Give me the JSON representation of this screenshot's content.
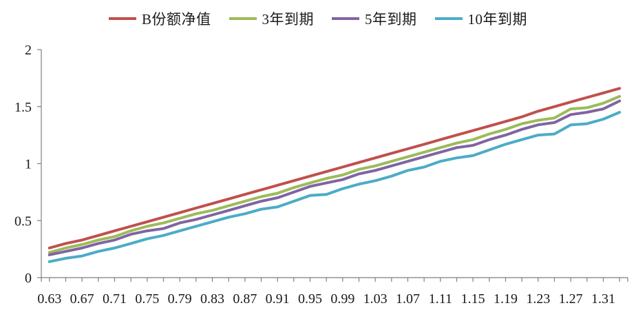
{
  "chart_data": {
    "type": "line",
    "title": "",
    "xlabel": "",
    "ylabel": "",
    "x_tick_labels": [
      "0.63",
      "0.67",
      "0.71",
      "0.75",
      "0.79",
      "0.83",
      "0.87",
      "0.91",
      "0.95",
      "0.99",
      "1.03",
      "1.07",
      "1.11",
      "1.15",
      "1.19",
      "1.23",
      "1.27",
      "1.31"
    ],
    "x": [
      0.63,
      0.65,
      0.67,
      0.69,
      0.71,
      0.73,
      0.75,
      0.77,
      0.79,
      0.81,
      0.83,
      0.85,
      0.87,
      0.89,
      0.91,
      0.93,
      0.95,
      0.97,
      0.99,
      1.01,
      1.03,
      1.05,
      1.07,
      1.09,
      1.11,
      1.13,
      1.15,
      1.17,
      1.19,
      1.21,
      1.23,
      1.25,
      1.27,
      1.29,
      1.31,
      1.33
    ],
    "xlim": [
      0.62,
      1.34
    ],
    "ylim": [
      0,
      2
    ],
    "y_ticks": [
      0,
      0.5,
      1,
      1.5,
      2
    ],
    "y_tick_labels": [
      "0",
      "0.5",
      "1",
      "1.5",
      "2"
    ],
    "grid": false,
    "legend_position": "top-center",
    "series": [
      {
        "name": "B份额净值",
        "color": "#c0504d",
        "values": [
          0.26,
          0.3,
          0.33,
          0.37,
          0.41,
          0.45,
          0.49,
          0.53,
          0.57,
          0.61,
          0.65,
          0.69,
          0.73,
          0.77,
          0.81,
          0.85,
          0.89,
          0.93,
          0.97,
          1.01,
          1.05,
          1.09,
          1.13,
          1.17,
          1.21,
          1.25,
          1.29,
          1.33,
          1.37,
          1.41,
          1.46,
          1.5,
          1.54,
          1.58,
          1.62,
          1.66
        ]
      },
      {
        "name": "3年到期",
        "color": "#9bbb59",
        "values": [
          0.22,
          0.26,
          0.29,
          0.33,
          0.36,
          0.41,
          0.45,
          0.48,
          0.52,
          0.56,
          0.59,
          0.63,
          0.67,
          0.71,
          0.74,
          0.79,
          0.83,
          0.87,
          0.9,
          0.95,
          0.98,
          1.02,
          1.06,
          1.1,
          1.14,
          1.18,
          1.21,
          1.26,
          1.3,
          1.35,
          1.38,
          1.4,
          1.48,
          1.49,
          1.53,
          1.59
        ]
      },
      {
        "name": "5年到期",
        "color": "#8064a2",
        "values": [
          0.2,
          0.23,
          0.26,
          0.3,
          0.33,
          0.38,
          0.41,
          0.43,
          0.48,
          0.51,
          0.55,
          0.59,
          0.63,
          0.67,
          0.7,
          0.75,
          0.8,
          0.83,
          0.86,
          0.91,
          0.94,
          0.98,
          1.02,
          1.06,
          1.1,
          1.14,
          1.16,
          1.21,
          1.25,
          1.3,
          1.34,
          1.36,
          1.43,
          1.45,
          1.48,
          1.55
        ]
      },
      {
        "name": "10年到期",
        "color": "#4bacc6",
        "values": [
          0.14,
          0.17,
          0.19,
          0.23,
          0.26,
          0.3,
          0.34,
          0.37,
          0.41,
          0.45,
          0.49,
          0.53,
          0.56,
          0.6,
          0.62,
          0.67,
          0.72,
          0.73,
          0.78,
          0.82,
          0.85,
          0.89,
          0.94,
          0.97,
          1.02,
          1.05,
          1.07,
          1.12,
          1.17,
          1.21,
          1.25,
          1.26,
          1.34,
          1.35,
          1.39,
          1.45
        ]
      }
    ]
  }
}
